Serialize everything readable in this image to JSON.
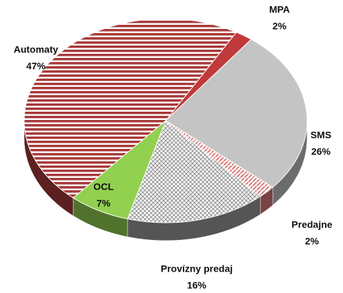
{
  "chart_data": {
    "type": "pie",
    "categories": [
      "MPA",
      "SMS",
      "Predajne",
      "Provízny predaj",
      "OCL",
      "Automaty"
    ],
    "values": [
      2,
      26,
      2,
      16,
      7,
      47
    ],
    "value_labels": [
      "2%",
      "26%",
      "2%",
      "16%",
      "7%",
      "47%"
    ],
    "colors": [
      "#c0393b",
      "#c4c4c4",
      "#d97a7a",
      "#9a9a9a",
      "#92d050",
      "#a83a3a"
    ]
  }
}
